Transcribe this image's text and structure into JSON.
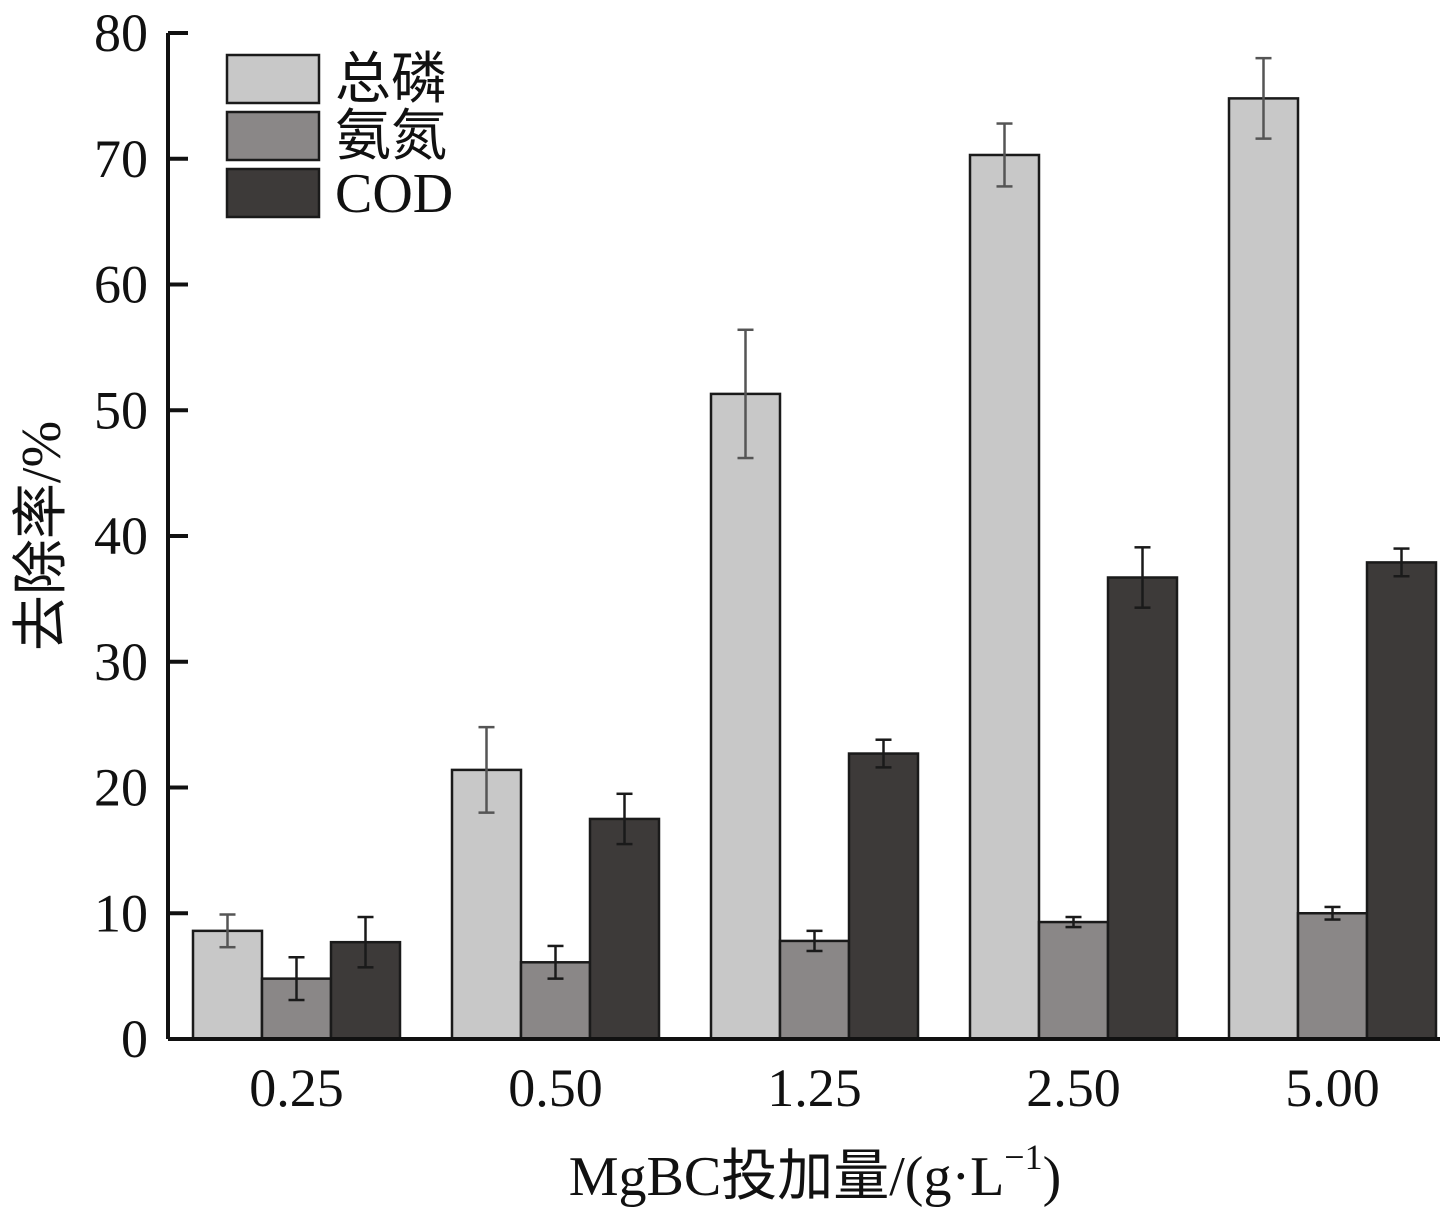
{
  "chart_data": {
    "type": "bar",
    "title": "",
    "xlabel_prefix": "MgBC投加量/(g·L",
    "xlabel_sup": "−1",
    "xlabel_suffix": ")",
    "ylabel": "去除率/%",
    "ylim": [
      0,
      80
    ],
    "yticks": [
      0,
      10,
      20,
      30,
      40,
      50,
      60,
      70,
      80
    ],
    "categories": [
      "0.25",
      "0.50",
      "1.25",
      "2.50",
      "5.00"
    ],
    "series": [
      {
        "name": "总磷",
        "color": "#c8c8c8",
        "values": [
          8.6,
          21.4,
          51.3,
          70.3,
          74.8
        ],
        "errors": [
          1.3,
          3.4,
          5.1,
          2.5,
          3.2
        ]
      },
      {
        "name": "氨氮",
        "color": "#8a8787",
        "values": [
          4.8,
          6.1,
          7.8,
          9.3,
          10.0
        ],
        "errors": [
          1.7,
          1.3,
          0.8,
          0.4,
          0.5
        ]
      },
      {
        "name": "COD",
        "color": "#3d3a39",
        "values": [
          7.7,
          17.5,
          22.7,
          36.7,
          37.9
        ],
        "errors": [
          2.0,
          2.0,
          1.1,
          2.4,
          1.1
        ]
      }
    ],
    "legend_position": "top-left",
    "grid": false
  }
}
